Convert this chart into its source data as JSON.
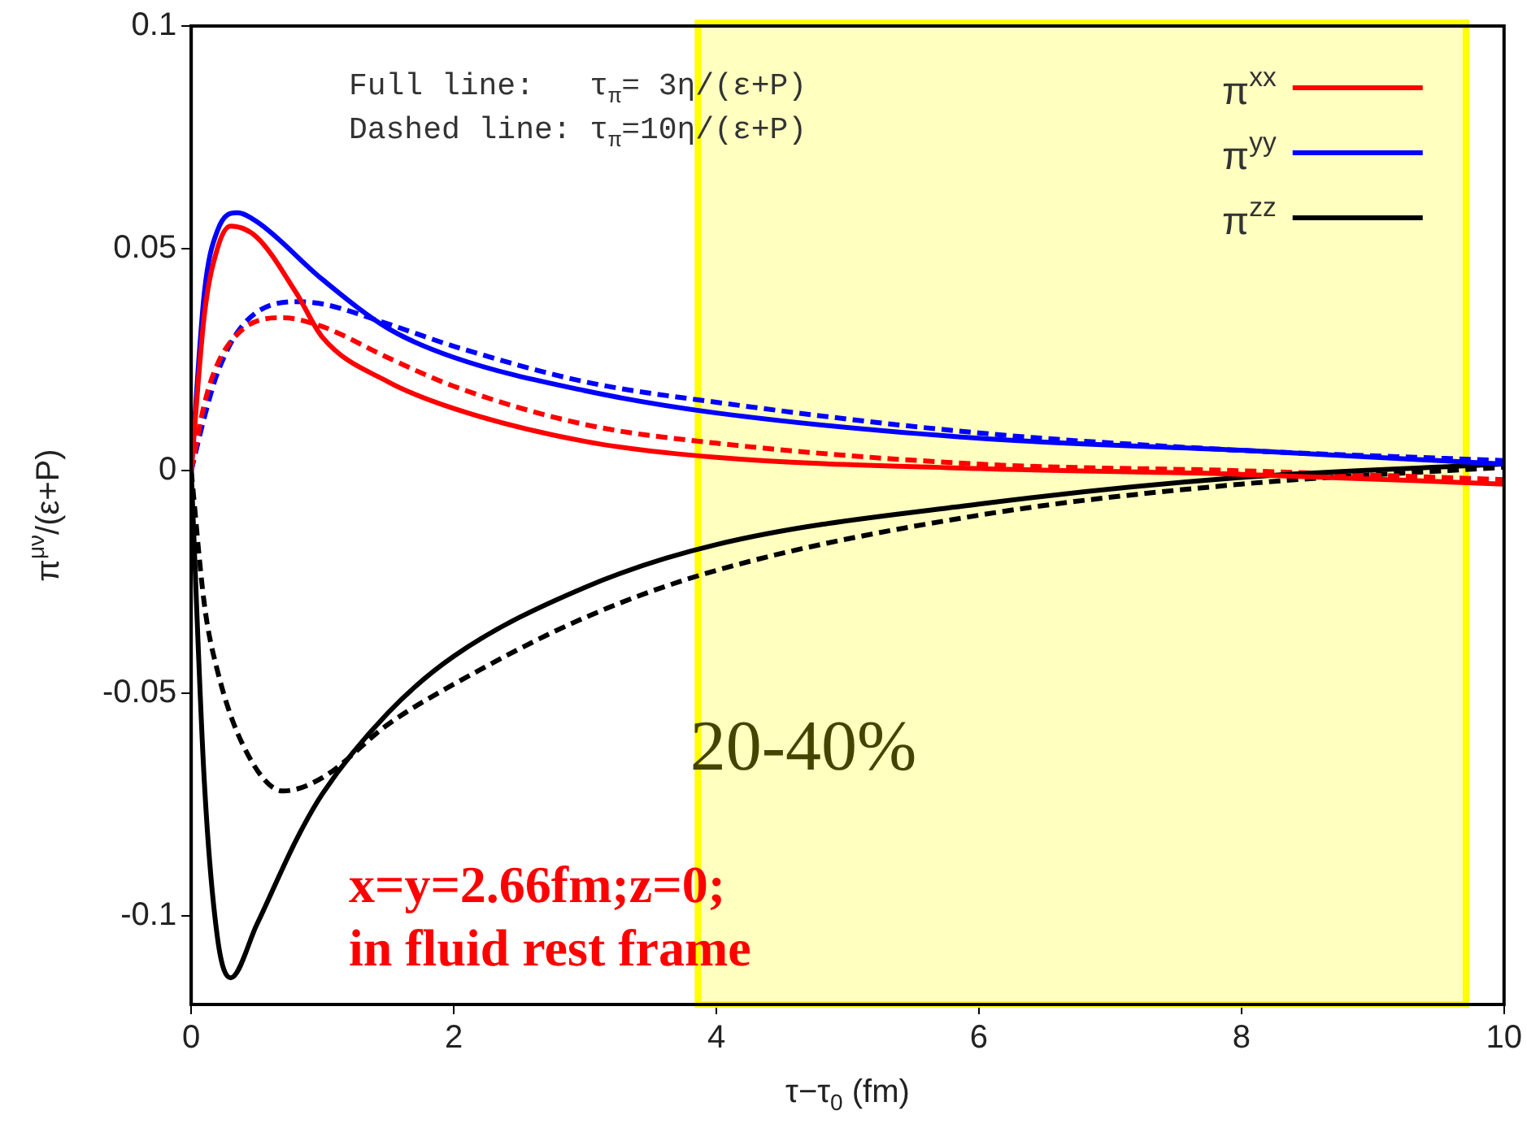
{
  "chart_data": {
    "type": "line",
    "xlabel": "τ−τ$_{0}$ (fm)",
    "ylabel": "π$^{μν}$/(ε+P)",
    "xlim": [
      0,
      10
    ],
    "xticks": [
      0,
      2,
      4,
      6,
      8,
      10
    ],
    "ylim": [
      -0.12,
      0.1
    ],
    "yticks": [
      -0.1,
      -0.05,
      0,
      0.05,
      0.1
    ],
    "grid": false,
    "legend": "top right",
    "marker": "none",
    "series": [
      {
        "name": "π$^{xx}$",
        "color": "#ff0000",
        "line_style": "solid",
        "x": [
          0,
          0.1,
          0.2,
          0.3,
          0.5,
          0.8,
          1,
          1.5,
          2,
          3,
          4,
          6,
          8,
          10
        ],
        "values": [
          0,
          0.035,
          0.05,
          0.055,
          0.0525,
          0.04,
          0.03,
          0.02,
          0.014,
          0.0066,
          0.003,
          0.0005,
          -0.0008,
          -0.003
        ]
      },
      {
        "name": "π$^{yy}$",
        "color": "#0000ff",
        "line_style": "solid",
        "x": [
          0,
          0.1,
          0.2,
          0.35,
          0.5,
          1,
          1.5,
          2,
          3,
          4,
          6,
          8,
          10
        ],
        "values": [
          0,
          0.04,
          0.054,
          0.058,
          0.056,
          0.043,
          0.032,
          0.0255,
          0.018,
          0.013,
          0.0073,
          0.0046,
          0.0015
        ]
      },
      {
        "name": "π$^{zz}$",
        "color": "#000000",
        "line_style": "solid",
        "x": [
          0,
          0.1,
          0.2,
          0.3,
          0.5,
          0.8,
          1,
          1.5,
          2,
          3,
          4,
          6,
          8,
          10
        ],
        "values": [
          0,
          -0.07,
          -0.105,
          -0.114,
          -0.102,
          -0.083,
          -0.0726,
          -0.0544,
          -0.0417,
          -0.0262,
          -0.0166,
          -0.0075,
          -0.0015,
          0.0015
        ]
      },
      {
        "color": "#ff0000",
        "line_style": "dashed",
        "x": [
          0,
          0.1,
          0.2,
          0.4,
          0.7,
          1,
          1.5,
          2,
          3,
          4,
          6,
          8,
          10
        ],
        "values": [
          0,
          0.015,
          0.024,
          0.032,
          0.0344,
          0.0324,
          0.0254,
          0.019,
          0.0104,
          0.0062,
          0.0015,
          0,
          -0.002
        ]
      },
      {
        "color": "#0000ff",
        "line_style": "dashed",
        "x": [
          0,
          0.1,
          0.2,
          0.4,
          0.8,
          1,
          1.5,
          2,
          3,
          4,
          6,
          8,
          10
        ],
        "values": [
          0,
          0.012,
          0.022,
          0.033,
          0.038,
          0.0375,
          0.033,
          0.028,
          0.02,
          0.0154,
          0.0085,
          0.0046,
          0.0023
        ]
      },
      {
        "color": "#000000",
        "line_style": "dashed",
        "x": [
          0,
          0.1,
          0.2,
          0.4,
          0.7,
          1,
          1.5,
          2,
          3,
          4,
          6,
          8,
          10
        ],
        "values": [
          0,
          -0.03,
          -0.045,
          -0.062,
          -0.072,
          -0.069,
          -0.057,
          -0.048,
          -0.033,
          -0.0224,
          -0.01,
          -0.003,
          0.0008
        ]
      }
    ],
    "bands": [
      {
        "axis": "x",
        "from": 3.86,
        "to": 9.71,
        "color": "#ffff00"
      }
    ],
    "annotations": [
      "Full line:   τ$_{π}$= 3η/(ε+P)",
      "Dashed line: τ$_{π}$=10η/(ε+P)",
      "20-40%",
      "x=y=2.66fm;z=0;",
      "in fluid rest frame"
    ]
  }
}
